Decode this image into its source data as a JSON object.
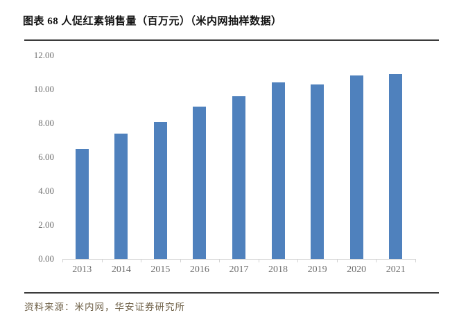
{
  "header": {
    "title": "图表 68 人促红素销售量（百万元）（米内网抽样数据）"
  },
  "footer": {
    "source": "资料来源：米内网，华安证券研究所"
  },
  "colors": {
    "bar": "#4F81BD",
    "axis": "#D2D2D2",
    "tick_label": "#6E6E6E",
    "rule": "#3B3B3B",
    "title_text": "#141414",
    "source_text": "#6F6148"
  },
  "chart_data": {
    "type": "bar",
    "title": "人促红素销售量（百万元）（米内网抽样数据）",
    "categories": [
      "2013",
      "2014",
      "2015",
      "2016",
      "2017",
      "2018",
      "2019",
      "2020",
      "2021"
    ],
    "values": [
      6.5,
      7.4,
      8.1,
      9.0,
      9.6,
      10.4,
      10.3,
      10.8,
      10.9
    ],
    "xlabel": "",
    "ylabel": "",
    "ylim": [
      0,
      12
    ],
    "y_ticks": [
      {
        "value": 12,
        "label": "12.00"
      },
      {
        "value": 10,
        "label": "10.00"
      },
      {
        "value": 8,
        "label": "8.00"
      },
      {
        "value": 6,
        "label": "6.00"
      },
      {
        "value": 4,
        "label": "4.00"
      },
      {
        "value": 2,
        "label": "2.00"
      },
      {
        "value": 0,
        "label": "0.00"
      }
    ],
    "grid": false,
    "legend": "none",
    "bar_color": "#4F81BD"
  }
}
